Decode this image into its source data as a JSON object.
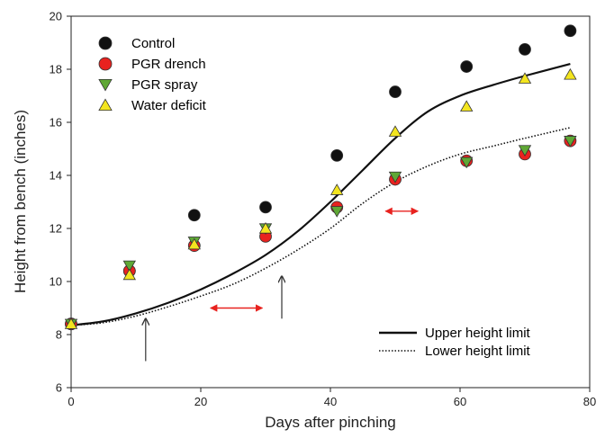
{
  "chart_data": {
    "type": "scatter",
    "title": "",
    "xlabel": "Days after pinching",
    "ylabel": "Height from bench (inches)",
    "xlim": [
      0,
      80
    ],
    "ylim": [
      6,
      20
    ],
    "x_ticks": [
      0,
      20,
      40,
      60,
      80
    ],
    "y_ticks": [
      6,
      8,
      10,
      12,
      14,
      16,
      18,
      20
    ],
    "grid": false,
    "legend_position": "top-left",
    "series": [
      {
        "name": "Control",
        "marker": "circle",
        "color": "#111111",
        "points": [
          [
            0,
            8.4
          ],
          [
            9,
            10.4
          ],
          [
            19,
            12.5
          ],
          [
            30,
            12.8
          ],
          [
            41,
            14.75
          ],
          [
            50,
            17.15
          ],
          [
            61,
            18.1
          ],
          [
            70,
            18.75
          ],
          [
            77,
            19.45
          ]
        ]
      },
      {
        "name": "PGR drench",
        "marker": "circle",
        "color": "#e8221f",
        "points": [
          [
            0,
            8.4
          ],
          [
            9,
            10.4
          ],
          [
            19,
            11.35
          ],
          [
            30,
            11.7
          ],
          [
            41,
            12.8
          ],
          [
            50,
            13.85
          ],
          [
            61,
            14.55
          ],
          [
            70,
            14.8
          ],
          [
            77,
            15.3
          ]
        ]
      },
      {
        "name": "PGR spray",
        "marker": "triangle-down",
        "color": "#5fa835",
        "points": [
          [
            0,
            8.4
          ],
          [
            9,
            10.6
          ],
          [
            19,
            11.5
          ],
          [
            30,
            12.0
          ],
          [
            41,
            12.65
          ],
          [
            50,
            13.95
          ],
          [
            61,
            14.5
          ],
          [
            70,
            14.95
          ],
          [
            77,
            15.3
          ]
        ]
      },
      {
        "name": "Water deficit",
        "marker": "triangle-up",
        "color": "#f3e51f",
        "points": [
          [
            0,
            8.4
          ],
          [
            9,
            10.25
          ],
          [
            19,
            11.4
          ],
          [
            30,
            12.0
          ],
          [
            41,
            13.45
          ],
          [
            50,
            15.65
          ],
          [
            61,
            16.6
          ],
          [
            70,
            17.65
          ],
          [
            77,
            17.8
          ]
        ]
      }
    ],
    "curves": [
      {
        "name": "Upper height limit",
        "style": "solid",
        "color": "#111111",
        "points": [
          [
            0,
            8.35
          ],
          [
            5,
            8.5
          ],
          [
            10,
            8.8
          ],
          [
            15,
            9.2
          ],
          [
            20,
            9.7
          ],
          [
            25,
            10.3
          ],
          [
            30,
            11.0
          ],
          [
            35,
            11.9
          ],
          [
            40,
            13.0
          ],
          [
            45,
            14.2
          ],
          [
            50,
            15.4
          ],
          [
            55,
            16.4
          ],
          [
            60,
            17.0
          ],
          [
            65,
            17.4
          ],
          [
            70,
            17.75
          ],
          [
            77,
            18.2
          ]
        ]
      },
      {
        "name": "Lower height limit",
        "style": "dotted",
        "color": "#111111",
        "points": [
          [
            0,
            8.35
          ],
          [
            5,
            8.45
          ],
          [
            10,
            8.7
          ],
          [
            15,
            9.05
          ],
          [
            20,
            9.45
          ],
          [
            25,
            9.9
          ],
          [
            30,
            10.5
          ],
          [
            35,
            11.2
          ],
          [
            40,
            12.0
          ],
          [
            45,
            12.95
          ],
          [
            50,
            13.75
          ],
          [
            55,
            14.35
          ],
          [
            60,
            14.8
          ],
          [
            65,
            15.1
          ],
          [
            70,
            15.4
          ],
          [
            77,
            15.8
          ]
        ]
      }
    ],
    "arrows": [
      {
        "color": "#333333",
        "direction": "up",
        "x": 11.5,
        "y_from": 7.0,
        "y_to": 8.6
      },
      {
        "color": "#333333",
        "direction": "up",
        "x": 32.5,
        "y_from": 8.6,
        "y_to": 10.2
      },
      {
        "color": "#e8221f",
        "direction": "both",
        "y": 9.0,
        "x_from": 21.5,
        "x_to": 29.5
      },
      {
        "color": "#e8221f",
        "direction": "both",
        "y": 12.65,
        "x_from": 48.5,
        "x_to": 53.5
      }
    ]
  }
}
